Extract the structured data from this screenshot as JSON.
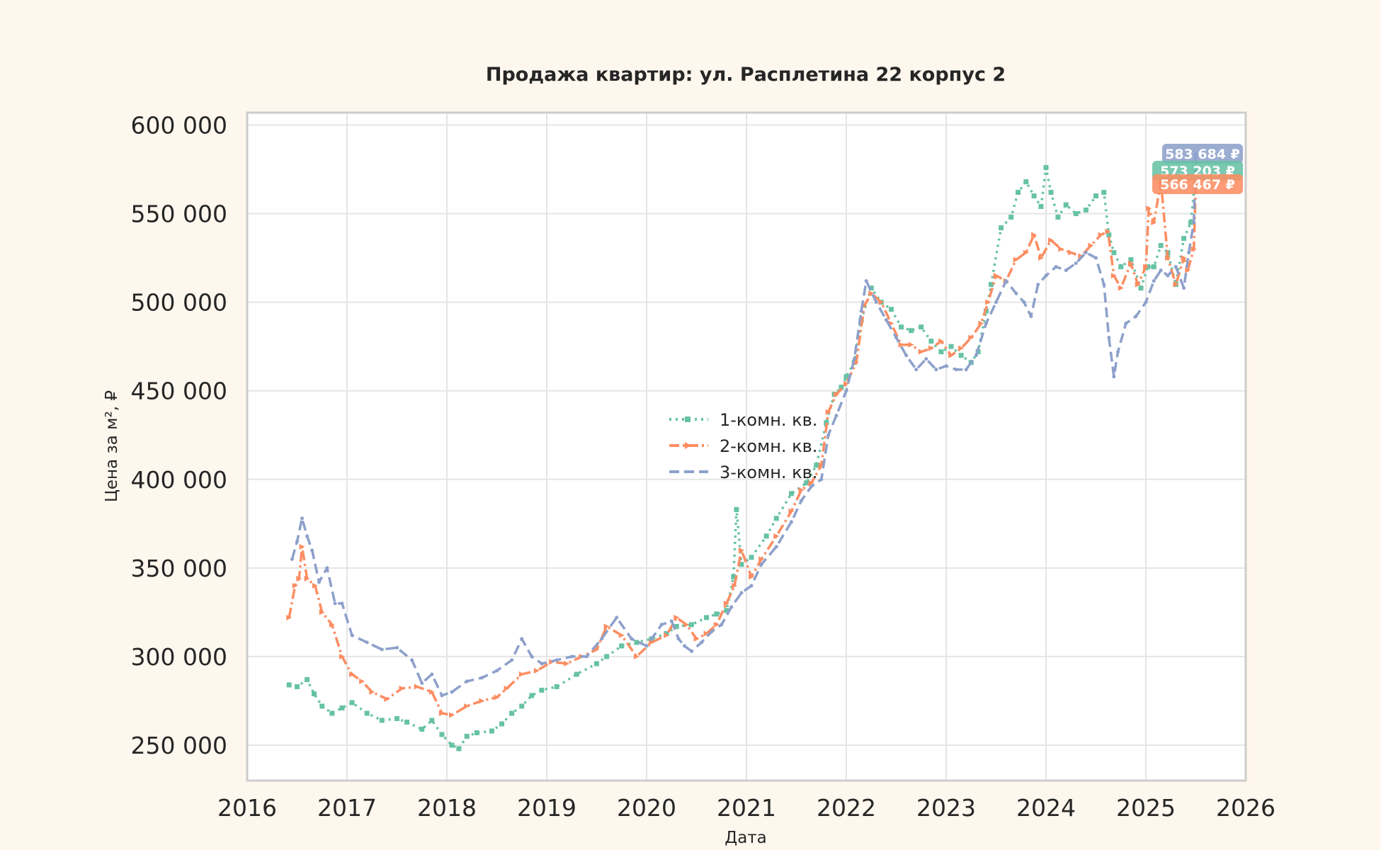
{
  "chart_data": {
    "type": "line",
    "title": "Продажа квартир: ул. Расплетина 22 корпус 2",
    "xlabel": "Дата",
    "ylabel": "Цена за м², ₽",
    "xlim": [
      2016,
      2026
    ],
    "ylim": [
      230000,
      607000
    ],
    "x_ticks": [
      "2016",
      "2017",
      "2018",
      "2019",
      "2020",
      "2021",
      "2022",
      "2023",
      "2024",
      "2025",
      "2026"
    ],
    "y_ticks": [
      "250 000",
      "300 000",
      "350 000",
      "400 000",
      "450 000",
      "500 000",
      "550 000",
      "600 000"
    ],
    "grid": true,
    "legend_position": "center",
    "series": [
      {
        "name": "1-комн. кв.",
        "color": "#66c2a5",
        "style": "dotted",
        "x": [
          2016.42,
          2016.5,
          2016.6,
          2016.67,
          2016.75,
          2016.85,
          2016.95,
          2017.05,
          2017.2,
          2017.35,
          2017.5,
          2017.6,
          2017.75,
          2017.85,
          2017.95,
          2018.05,
          2018.12,
          2018.2,
          2018.3,
          2018.45,
          2018.55,
          2018.65,
          2018.75,
          2018.85,
          2018.95,
          2019.1,
          2019.3,
          2019.5,
          2019.6,
          2019.75,
          2019.9,
          2020.05,
          2020.2,
          2020.3,
          2020.45,
          2020.6,
          2020.7,
          2020.8,
          2020.87,
          2020.9,
          2020.95,
          2021.05,
          2021.2,
          2021.3,
          2021.45,
          2021.6,
          2021.7,
          2021.8,
          2021.88,
          2021.95,
          2022.0,
          2022.08,
          2022.15,
          2022.25,
          2022.35,
          2022.45,
          2022.55,
          2022.65,
          2022.75,
          2022.85,
          2022.95,
          2023.05,
          2023.15,
          2023.25,
          2023.32,
          2023.4,
          2023.45,
          2023.55,
          2023.65,
          2023.72,
          2023.8,
          2023.88,
          2023.95,
          2024.0,
          2024.05,
          2024.12,
          2024.2,
          2024.3,
          2024.4,
          2024.5,
          2024.58,
          2024.63,
          2024.68,
          2024.75,
          2024.85,
          2024.95,
          2025.02,
          2025.08,
          2025.15,
          2025.22,
          2025.3,
          2025.38,
          2025.45,
          2025.5
        ],
        "y": [
          284000,
          283000,
          287000,
          279000,
          272000,
          268000,
          271000,
          274000,
          268000,
          264000,
          265000,
          263000,
          259000,
          264000,
          256000,
          250000,
          248000,
          255000,
          257000,
          258000,
          262000,
          268000,
          272000,
          278000,
          281000,
          283000,
          290000,
          296000,
          300000,
          306000,
          308000,
          310000,
          313000,
          317000,
          318000,
          322000,
          324000,
          326000,
          345000,
          383000,
          352000,
          356000,
          368000,
          378000,
          392000,
          398000,
          408000,
          432000,
          448000,
          452000,
          458000,
          466000,
          490000,
          508000,
          500000,
          496000,
          486000,
          484000,
          486000,
          478000,
          472000,
          475000,
          470000,
          466000,
          472000,
          495000,
          510000,
          542000,
          548000,
          562000,
          568000,
          560000,
          554000,
          576000,
          562000,
          548000,
          555000,
          550000,
          552000,
          560000,
          562000,
          538000,
          528000,
          520000,
          524000,
          508000,
          520000,
          520000,
          532000,
          528000,
          510000,
          536000,
          545000,
          573203
        ]
      },
      {
        "name": "2-комн. кв.",
        "color": "#fc8d62",
        "style": "dashdot",
        "x": [
          2016.42,
          2016.48,
          2016.52,
          2016.55,
          2016.6,
          2016.68,
          2016.75,
          2016.85,
          2016.95,
          2017.05,
          2017.15,
          2017.25,
          2017.4,
          2017.55,
          2017.7,
          2017.85,
          2017.95,
          2018.05,
          2018.2,
          2018.35,
          2018.5,
          2018.6,
          2018.75,
          2018.9,
          2019.05,
          2019.2,
          2019.35,
          2019.5,
          2019.6,
          2019.75,
          2019.9,
          2020.05,
          2020.2,
          2020.3,
          2020.4,
          2020.5,
          2020.6,
          2020.7,
          2020.8,
          2020.88,
          2020.95,
          2021.05,
          2021.15,
          2021.3,
          2021.45,
          2021.55,
          2021.65,
          2021.75,
          2021.82,
          2021.9,
          2022.0,
          2022.1,
          2022.18,
          2022.25,
          2022.35,
          2022.45,
          2022.55,
          2022.65,
          2022.75,
          2022.85,
          2022.95,
          2023.05,
          2023.15,
          2023.25,
          2023.35,
          2023.42,
          2023.5,
          2023.6,
          2023.7,
          2023.8,
          2023.88,
          2023.95,
          2024.05,
          2024.15,
          2024.25,
          2024.35,
          2024.45,
          2024.55,
          2024.62,
          2024.68,
          2024.75,
          2024.85,
          2024.92,
          2025.0,
          2025.03,
          2025.08,
          2025.15,
          2025.22,
          2025.3,
          2025.38,
          2025.42,
          2025.48,
          2025.5
        ],
        "y": [
          322000,
          340000,
          344000,
          362000,
          344000,
          340000,
          325000,
          318000,
          300000,
          290000,
          286000,
          280000,
          276000,
          282000,
          283000,
          280000,
          268000,
          267000,
          272000,
          275000,
          277000,
          282000,
          290000,
          292000,
          297000,
          296000,
          300000,
          304000,
          317000,
          312000,
          300000,
          308000,
          312000,
          322000,
          318000,
          310000,
          313000,
          318000,
          330000,
          340000,
          360000,
          345000,
          355000,
          368000,
          382000,
          394000,
          398000,
          408000,
          438000,
          448000,
          454000,
          466000,
          498000,
          505000,
          500000,
          488000,
          476000,
          476000,
          472000,
          474000,
          478000,
          470000,
          474000,
          480000,
          488000,
          500000,
          515000,
          512000,
          524000,
          528000,
          538000,
          525000,
          535000,
          530000,
          528000,
          526000,
          532000,
          538000,
          540000,
          515000,
          508000,
          522000,
          510000,
          520000,
          553000,
          545000,
          568000,
          525000,
          510000,
          525000,
          518000,
          530000,
          566467
        ]
      },
      {
        "name": "3-комн. кв.",
        "color": "#8da0cb",
        "style": "dashed",
        "x": [
          2016.45,
          2016.5,
          2016.55,
          2016.6,
          2016.65,
          2016.72,
          2016.8,
          2016.88,
          2016.95,
          2017.05,
          2017.2,
          2017.35,
          2017.5,
          2017.65,
          2017.75,
          2017.85,
          2017.95,
          2018.05,
          2018.2,
          2018.35,
          2018.5,
          2018.65,
          2018.75,
          2018.85,
          2018.95,
          2019.1,
          2019.25,
          2019.4,
          2019.55,
          2019.7,
          2019.85,
          2020.0,
          2020.15,
          2020.25,
          2020.32,
          2020.38,
          2020.45,
          2020.55,
          2020.65,
          2020.75,
          2020.85,
          2020.95,
          2021.05,
          2021.15,
          2021.3,
          2021.45,
          2021.55,
          2021.65,
          2021.75,
          2021.82,
          2021.9,
          2022.0,
          2022.08,
          2022.15,
          2022.2,
          2022.3,
          2022.4,
          2022.5,
          2022.6,
          2022.7,
          2022.8,
          2022.9,
          2023.0,
          2023.1,
          2023.2,
          2023.3,
          2023.4,
          2023.5,
          2023.6,
          2023.7,
          2023.78,
          2023.85,
          2023.92,
          2024.0,
          2024.1,
          2024.2,
          2024.3,
          2024.4,
          2024.5,
          2024.58,
          2024.63,
          2024.68,
          2024.72,
          2024.8,
          2024.9,
          2025.0,
          2025.08,
          2025.15,
          2025.22,
          2025.3,
          2025.38,
          2025.43,
          2025.48,
          2025.5
        ],
        "y": [
          355000,
          365000,
          378000,
          368000,
          360000,
          342000,
          350000,
          330000,
          330000,
          312000,
          308000,
          304000,
          305000,
          298000,
          285000,
          290000,
          278000,
          280000,
          286000,
          288000,
          292000,
          298000,
          310000,
          300000,
          296000,
          298000,
          300000,
          300000,
          310000,
          322000,
          310000,
          306000,
          318000,
          320000,
          310000,
          306000,
          303000,
          308000,
          314000,
          318000,
          328000,
          336000,
          340000,
          352000,
          362000,
          376000,
          388000,
          396000,
          400000,
          425000,
          436000,
          450000,
          468000,
          495000,
          512000,
          500000,
          490000,
          480000,
          470000,
          462000,
          468000,
          462000,
          464000,
          462000,
          462000,
          470000,
          488000,
          500000,
          512000,
          505000,
          500000,
          492000,
          510000,
          515000,
          520000,
          518000,
          522000,
          528000,
          525000,
          510000,
          480000,
          458000,
          472000,
          488000,
          492000,
          500000,
          512000,
          518000,
          515000,
          520000,
          508000,
          528000,
          545000,
          583684
        ]
      }
    ],
    "last_value_labels": [
      "583 684 ₽",
      "573 203 ₽",
      "566 467 ₽"
    ]
  }
}
